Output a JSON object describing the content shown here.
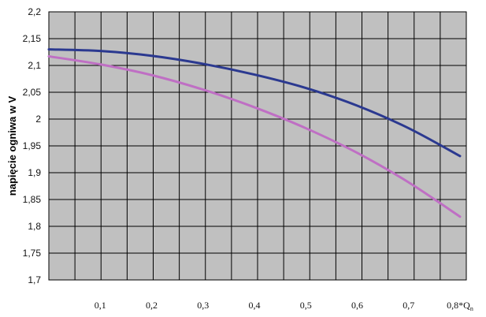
{
  "chart_data": {
    "type": "line",
    "ylabel": "napięcie ogniwa w V",
    "ylim": [
      1.7,
      2.2
    ],
    "xlim": [
      0,
      0.8
    ],
    "grid": true,
    "plot_bg": "#c0c0c0",
    "y_ticks": [
      "2,2",
      "2,15",
      "2,1",
      "2,05",
      "2",
      "1,95",
      "1,9",
      "1,85",
      "1,8",
      "1,75",
      "1,7"
    ],
    "x_tick_labels": [
      {
        "x": 0.1,
        "label": "0,1"
      },
      {
        "x": 0.2,
        "label": "0,2"
      },
      {
        "x": 0.3,
        "label": "0,3"
      },
      {
        "x": 0.4,
        "label": "0,4"
      },
      {
        "x": 0.5,
        "label": "0,5"
      },
      {
        "x": 0.6,
        "label": "0,6"
      },
      {
        "x": 0.7,
        "label": "0,7"
      },
      {
        "x": 0.8,
        "label": "0,8*Q",
        "subscript": "n"
      }
    ],
    "series": [
      {
        "color": "#2b3990",
        "points": [
          [
            0.0,
            2.13
          ],
          [
            0.1,
            2.127
          ],
          [
            0.2,
            2.118
          ],
          [
            0.3,
            2.103
          ],
          [
            0.4,
            2.083
          ],
          [
            0.5,
            2.058
          ],
          [
            0.6,
            2.025
          ],
          [
            0.7,
            1.983
          ],
          [
            0.8,
            1.931
          ]
        ]
      },
      {
        "color": "#bf6fc4",
        "points": [
          [
            0.0,
            2.117
          ],
          [
            0.1,
            2.102
          ],
          [
            0.2,
            2.082
          ],
          [
            0.3,
            2.055
          ],
          [
            0.4,
            2.022
          ],
          [
            0.5,
            1.983
          ],
          [
            0.6,
            1.937
          ],
          [
            0.7,
            1.882
          ],
          [
            0.8,
            1.818
          ]
        ]
      }
    ]
  }
}
